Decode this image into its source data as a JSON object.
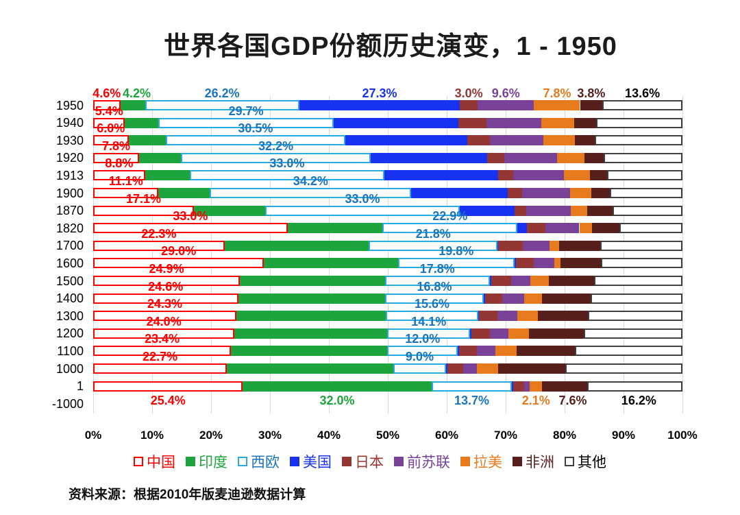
{
  "title": "世界各国GDP份额历史演变，1 - 1950",
  "source": "资料来源：根据2010年版麦迪逊数据计算",
  "chart_data": {
    "type": "bar",
    "stacked": true,
    "orientation": "horizontal",
    "unit": "%",
    "xlim": [
      0,
      100
    ],
    "grid": true,
    "legend_position": "bottom",
    "x_ticks": [
      "0%",
      "10%",
      "20%",
      "30%",
      "40%",
      "50%",
      "60%",
      "70%",
      "80%",
      "90%",
      "100%"
    ],
    "series_meta": [
      {
        "key": "china",
        "name": "中国",
        "fill": "outline",
        "color": "#FF0000",
        "label_color": "#FF0000"
      },
      {
        "key": "india",
        "name": "印度",
        "fill": "solid",
        "color": "#1EA43C",
        "label_color": "#1EA43C"
      },
      {
        "key": "west-europe",
        "name": "西欧",
        "fill": "outline",
        "color": "#29ABE2",
        "label_color": "#1B75BC"
      },
      {
        "key": "usa",
        "name": "美国",
        "fill": "solid",
        "color": "#1733F1",
        "label_color": "#1733F1"
      },
      {
        "key": "japan",
        "name": "日本",
        "fill": "solid",
        "color": "#943634",
        "label_color": "#943634"
      },
      {
        "key": "ussr",
        "name": "前苏联",
        "fill": "solid",
        "color": "#7A4198",
        "label_color": "#7A4198"
      },
      {
        "key": "latin-america",
        "name": "拉美",
        "fill": "solid",
        "color": "#E87A1E",
        "label_color": "#E87A1E"
      },
      {
        "key": "africa",
        "name": "非洲",
        "fill": "solid",
        "color": "#571F1C",
        "label_color": "#571F1C"
      },
      {
        "key": "other",
        "name": "其他",
        "fill": "outline",
        "color": "#3F3F3F",
        "label_color": "#000000"
      }
    ],
    "rows": [
      {
        "year": "1950",
        "values": [
          4.6,
          4.2,
          26.2,
          27.3,
          3.0,
          9.6,
          7.8,
          3.8,
          13.6
        ],
        "show_labels": [
          0,
          1,
          2,
          3,
          4,
          5,
          6,
          7,
          8
        ],
        "label_side": "above",
        "label_dx": {
          "1": 6
        }
      },
      {
        "year": "1940",
        "values": [
          5.4,
          5.7,
          29.7,
          21.2,
          4.7,
          9.4,
          5.5,
          3.7,
          14.7
        ],
        "show_labels": [
          0,
          2
        ],
        "label_side": "above"
      },
      {
        "year": "1930",
        "values": [
          6.0,
          6.3,
          30.5,
          20.7,
          3.8,
          9.1,
          5.3,
          3.4,
          14.9
        ],
        "show_labels": [
          0,
          2
        ],
        "label_side": "above"
      },
      {
        "year": "1920",
        "values": [
          7.8,
          7.1,
          32.2,
          19.8,
          2.9,
          8.9,
          4.7,
          3.2,
          13.4
        ],
        "show_labels": [
          0,
          2
        ],
        "label_side": "above"
      },
      {
        "year": "1913",
        "values": [
          8.8,
          7.6,
          33.0,
          19.3,
          2.6,
          8.6,
          4.4,
          2.9,
          12.8
        ],
        "show_labels": [
          0,
          2
        ],
        "label_side": "above"
      },
      {
        "year": "1900",
        "values": [
          11.1,
          8.7,
          34.2,
          16.3,
          2.5,
          8.1,
          3.6,
          3.2,
          12.3
        ],
        "show_labels": [
          0,
          2
        ],
        "label_side": "above"
      },
      {
        "year": "1870",
        "values": [
          17.1,
          12.1,
          33.0,
          9.3,
          2.0,
          7.6,
          2.7,
          4.3,
          11.9
        ],
        "show_labels": [
          0,
          2
        ],
        "label_side": "above"
      },
      {
        "year": "1820",
        "values": [
          33.0,
          16.1,
          22.9,
          1.6,
          3.2,
          5.7,
          2.2,
          4.6,
          10.7
        ],
        "show_labels": [
          0,
          2
        ],
        "label_side": "above"
      },
      {
        "year": "1700",
        "values": [
          22.3,
          24.5,
          21.8,
          0.1,
          4.2,
          4.5,
          1.7,
          6.9,
          14.0
        ],
        "show_labels": [
          0,
          2
        ],
        "label_side": "above"
      },
      {
        "year": "1600",
        "values": [
          29.0,
          22.7,
          19.8,
          0.2,
          3.1,
          3.4,
          1.1,
          6.9,
          13.8
        ],
        "show_labels": [
          0,
          2
        ],
        "label_side": "above"
      },
      {
        "year": "1500",
        "values": [
          24.9,
          24.6,
          17.8,
          0.3,
          3.3,
          3.3,
          3.1,
          7.7,
          15.0
        ],
        "show_labels": [
          0,
          2
        ],
        "label_side": "above"
      },
      {
        "year": "1400",
        "values": [
          24.6,
          24.9,
          16.8,
          0.2,
          2.9,
          3.7,
          3.1,
          8.2,
          15.6
        ],
        "show_labels": [
          0,
          2
        ],
        "label_side": "above"
      },
      {
        "year": "1300",
        "values": [
          24.3,
          25.4,
          15.6,
          0.2,
          3.1,
          3.4,
          3.5,
          8.4,
          16.1
        ],
        "show_labels": [
          0,
          2
        ],
        "label_side": "above"
      },
      {
        "year": "1200",
        "values": [
          24.0,
          25.9,
          14.1,
          0.2,
          3.1,
          3.2,
          3.5,
          9.2,
          16.8
        ],
        "show_labels": [
          0,
          2
        ],
        "label_side": "above"
      },
      {
        "year": "1100",
        "values": [
          23.4,
          26.5,
          12.0,
          0.2,
          3.0,
          3.1,
          3.7,
          9.8,
          18.3
        ],
        "show_labels": [
          0,
          2
        ],
        "label_side": "above"
      },
      {
        "year": "1000",
        "values": [
          22.7,
          28.2,
          9.0,
          0.2,
          2.7,
          2.3,
          3.6,
          11.4,
          19.9
        ],
        "show_labels": [
          0,
          2
        ],
        "label_side": "above"
      },
      {
        "year": "1",
        "values": [
          25.4,
          32.0,
          13.7,
          0.2,
          1.8,
          1.0,
          2.1,
          7.6,
          16.2
        ],
        "show_labels": [
          0,
          1,
          2,
          6,
          7,
          8
        ],
        "label_side": "below",
        "label_dx": {
          "7": 12,
          "8": 6
        }
      },
      {
        "year": "-1000",
        "values": null
      }
    ]
  }
}
